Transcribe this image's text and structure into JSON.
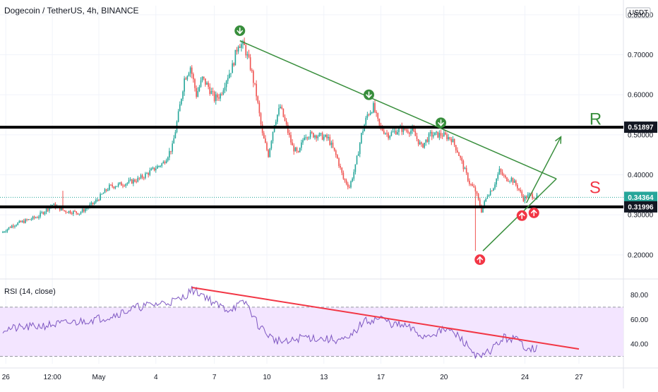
{
  "header": {
    "symbol_title": "Dogecoin / TetherUS, 4h, BINANCE",
    "currency": "USDT"
  },
  "rsi_panel": {
    "title": "RSI (14, close)"
  },
  "colors": {
    "bull": "#26a69a",
    "bear": "#ef5350",
    "trend_green": "#388e3c",
    "trend_red": "#f23645",
    "rsi_line": "#7e57c2",
    "rsi_band": "#f3e5ff",
    "level_line": "#000000",
    "current_tag": "#26a69a"
  },
  "chart_data": [
    {
      "type": "candlestick",
      "title": "Dogecoin / TetherUS, 4h, BINANCE",
      "y_axis_ticks": [
        "0.80000",
        "0.70000",
        "0.60000",
        "0.50000",
        "0.40000",
        "0.30000",
        "0.20000"
      ],
      "x_axis_ticks": [
        "26",
        "12:00",
        "May",
        "4",
        "7",
        "10",
        "13",
        "17",
        "20",
        "24",
        "27"
      ],
      "ylim": [
        0.145,
        0.805
      ],
      "price_tags": [
        {
          "label": "0.51897",
          "value": 0.51897,
          "style": "level"
        },
        {
          "label": "0.34364",
          "value": 0.34364,
          "style": "current"
        },
        {
          "label": "0.31996",
          "value": 0.31996,
          "style": "level"
        }
      ],
      "horizontal_levels": [
        0.51897,
        0.31996
      ],
      "current_price": 0.34364,
      "path_keypoints": [
        [
          0,
          0.255
        ],
        [
          8,
          0.275
        ],
        [
          16,
          0.285
        ],
        [
          24,
          0.295
        ],
        [
          34,
          0.325
        ],
        [
          42,
          0.31
        ],
        [
          52,
          0.305
        ],
        [
          62,
          0.33
        ],
        [
          72,
          0.37
        ],
        [
          84,
          0.38
        ],
        [
          92,
          0.39
        ],
        [
          100,
          0.41
        ],
        [
          108,
          0.43
        ],
        [
          114,
          0.47
        ],
        [
          118,
          0.55
        ],
        [
          122,
          0.64
        ],
        [
          126,
          0.67
        ],
        [
          130,
          0.6
        ],
        [
          134,
          0.64
        ],
        [
          138,
          0.62
        ],
        [
          142,
          0.59
        ],
        [
          146,
          0.6
        ],
        [
          150,
          0.64
        ],
        [
          154,
          0.67
        ],
        [
          158,
          0.73
        ],
        [
          162,
          0.72
        ],
        [
          166,
          0.67
        ],
        [
          170,
          0.6
        ],
        [
          174,
          0.5
        ],
        [
          178,
          0.45
        ],
        [
          182,
          0.53
        ],
        [
          186,
          0.57
        ],
        [
          190,
          0.52
        ],
        [
          194,
          0.47
        ],
        [
          198,
          0.45
        ],
        [
          202,
          0.5
        ],
        [
          210,
          0.5
        ],
        [
          218,
          0.49
        ],
        [
          224,
          0.44
        ],
        [
          228,
          0.39
        ],
        [
          232,
          0.37
        ],
        [
          236,
          0.42
        ],
        [
          240,
          0.5
        ],
        [
          244,
          0.55
        ],
        [
          248,
          0.57
        ],
        [
          252,
          0.52
        ],
        [
          258,
          0.5
        ],
        [
          266,
          0.515
        ],
        [
          274,
          0.51
        ],
        [
          280,
          0.47
        ],
        [
          286,
          0.5
        ],
        [
          294,
          0.5
        ],
        [
          300,
          0.49
        ],
        [
          304,
          0.46
        ],
        [
          308,
          0.42
        ],
        [
          312,
          0.38
        ],
        [
          316,
          0.36
        ],
        [
          320,
          0.31
        ],
        [
          324,
          0.35
        ],
        [
          328,
          0.37
        ],
        [
          332,
          0.41
        ],
        [
          336,
          0.39
        ],
        [
          340,
          0.39
        ],
        [
          344,
          0.37
        ],
        [
          348,
          0.34
        ],
        [
          352,
          0.35
        ],
        [
          356,
          0.345
        ]
      ],
      "trend_lines": [
        {
          "name": "resistance",
          "points": [
            [
              158,
              0.735
            ],
            [
              369,
              0.39
            ]
          ],
          "color": "trend_green"
        },
        {
          "name": "support",
          "points": [
            [
              320,
              0.21
            ],
            [
              369,
              0.39
            ]
          ],
          "color": "trend_green"
        },
        {
          "name": "projection",
          "points": [
            [
              349,
              0.33
            ],
            [
              372,
              0.495
            ]
          ],
          "color": "trend_green",
          "arrow": true
        }
      ],
      "down_markers": [
        [
          158,
          0.76
        ],
        [
          244,
          0.6
        ],
        [
          292,
          0.53
        ]
      ],
      "up_markers": [
        [
          318,
          0.188
        ],
        [
          346,
          0.298
        ],
        [
          354,
          0.305
        ]
      ],
      "annotations": [
        {
          "text": "R",
          "x": 391,
          "value": 0.525,
          "color": "trend_green"
        },
        {
          "text": "S",
          "x": 391,
          "value": 0.354,
          "color": "trend_red"
        }
      ]
    },
    {
      "type": "line",
      "title": "RSI (14, close)",
      "y_axis_ticks": [
        "80.00",
        "60.00",
        "40.00"
      ],
      "ylim": [
        24,
        90
      ],
      "band": [
        30,
        70
      ],
      "keypoints": [
        [
          0,
          52
        ],
        [
          20,
          54
        ],
        [
          50,
          58
        ],
        [
          70,
          62
        ],
        [
          90,
          70
        ],
        [
          105,
          73
        ],
        [
          118,
          76
        ],
        [
          126,
          84
        ],
        [
          134,
          80
        ],
        [
          142,
          72
        ],
        [
          150,
          68
        ],
        [
          162,
          74
        ],
        [
          170,
          56
        ],
        [
          180,
          44
        ],
        [
          190,
          41
        ],
        [
          200,
          46
        ],
        [
          215,
          44
        ],
        [
          230,
          43
        ],
        [
          240,
          58
        ],
        [
          252,
          61
        ],
        [
          260,
          56
        ],
        [
          270,
          54
        ],
        [
          280,
          46
        ],
        [
          296,
          52
        ],
        [
          304,
          46
        ],
        [
          314,
          33
        ],
        [
          318,
          28
        ],
        [
          324,
          34
        ],
        [
          334,
          45
        ],
        [
          342,
          44
        ],
        [
          348,
          38
        ],
        [
          356,
          36
        ]
      ],
      "trend_lines": [
        {
          "name": "rsi-resistance",
          "points": [
            [
              126,
              86
            ],
            [
              384,
              36
            ]
          ],
          "color": "trend_red"
        }
      ]
    }
  ]
}
